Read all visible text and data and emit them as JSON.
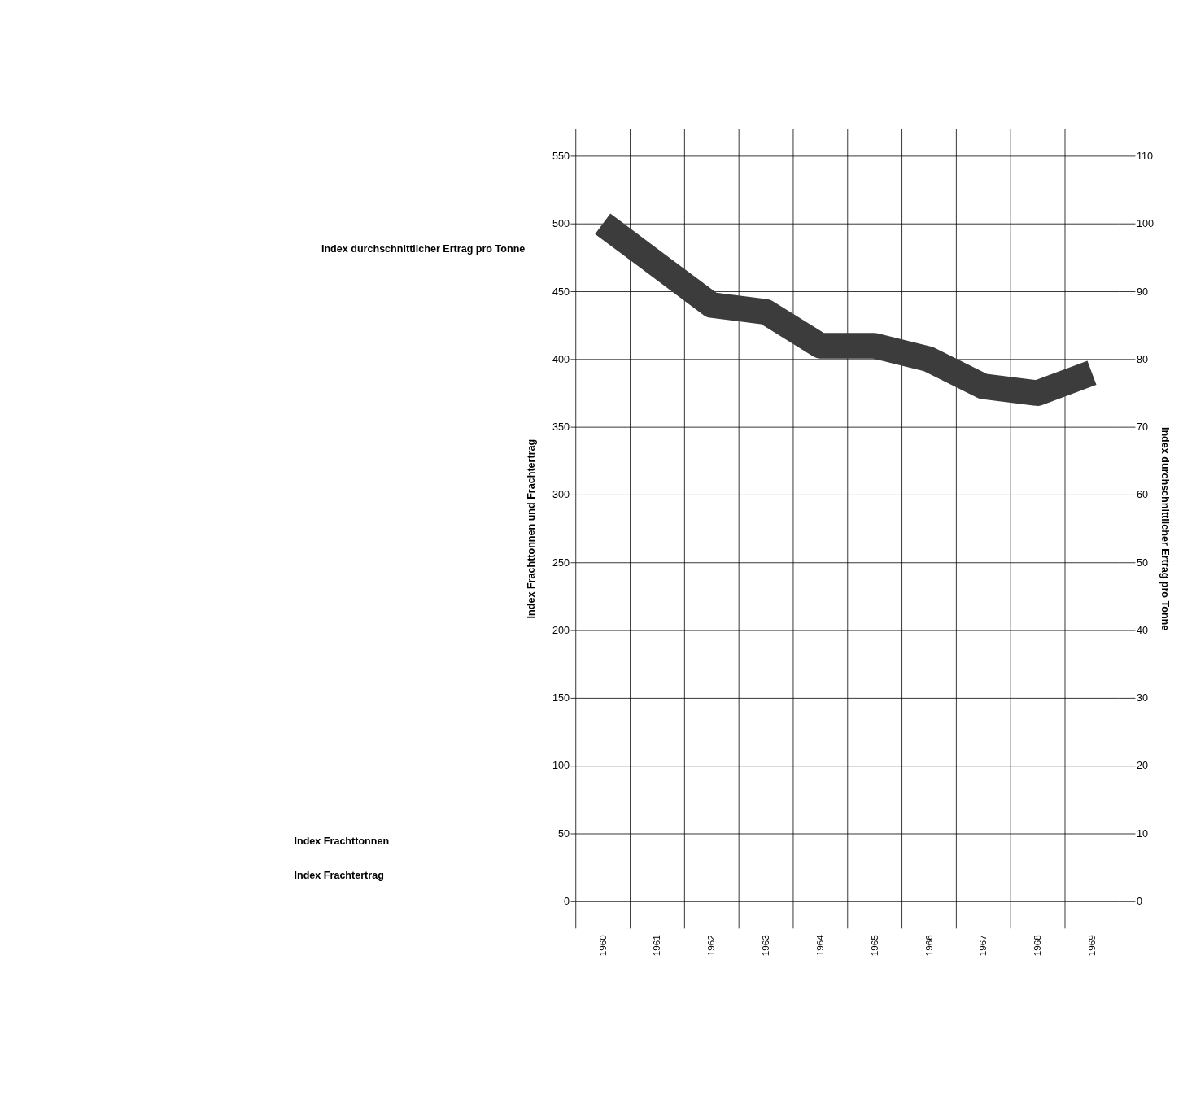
{
  "chart_data": {
    "type": "line",
    "xlabel": null,
    "ylabel": "Index Frachttonnen und Frachtertrag",
    "y2label": "Index durchschnittlicher Ertrag pro Tonne",
    "categories": [
      "1960",
      "1961",
      "1962",
      "1963",
      "1964",
      "1965",
      "1966",
      "1967",
      "1968",
      "1969"
    ],
    "series": [
      {
        "name": "Index durchschnittlicher Ertrag pro Tonne",
        "color": "#3c3c3c",
        "axis": "y2",
        "values": [
          100,
          94,
          88,
          87,
          82,
          82,
          80,
          76,
          75,
          78
        ]
      }
    ],
    "ylim": [
      -20,
      570
    ],
    "yticks": [
      0,
      50,
      100,
      150,
      200,
      250,
      300,
      350,
      400,
      450,
      500,
      550
    ],
    "y2lim": [
      -4,
      114
    ],
    "y2ticks": [
      0,
      10,
      20,
      30,
      40,
      50,
      60,
      70,
      80,
      90,
      100,
      110
    ],
    "annotations": [
      "Index Frachttonnen",
      "Index Frachtertrag"
    ],
    "grid": true,
    "legend": false,
    "marker": "none",
    "line_style": "solid"
  }
}
